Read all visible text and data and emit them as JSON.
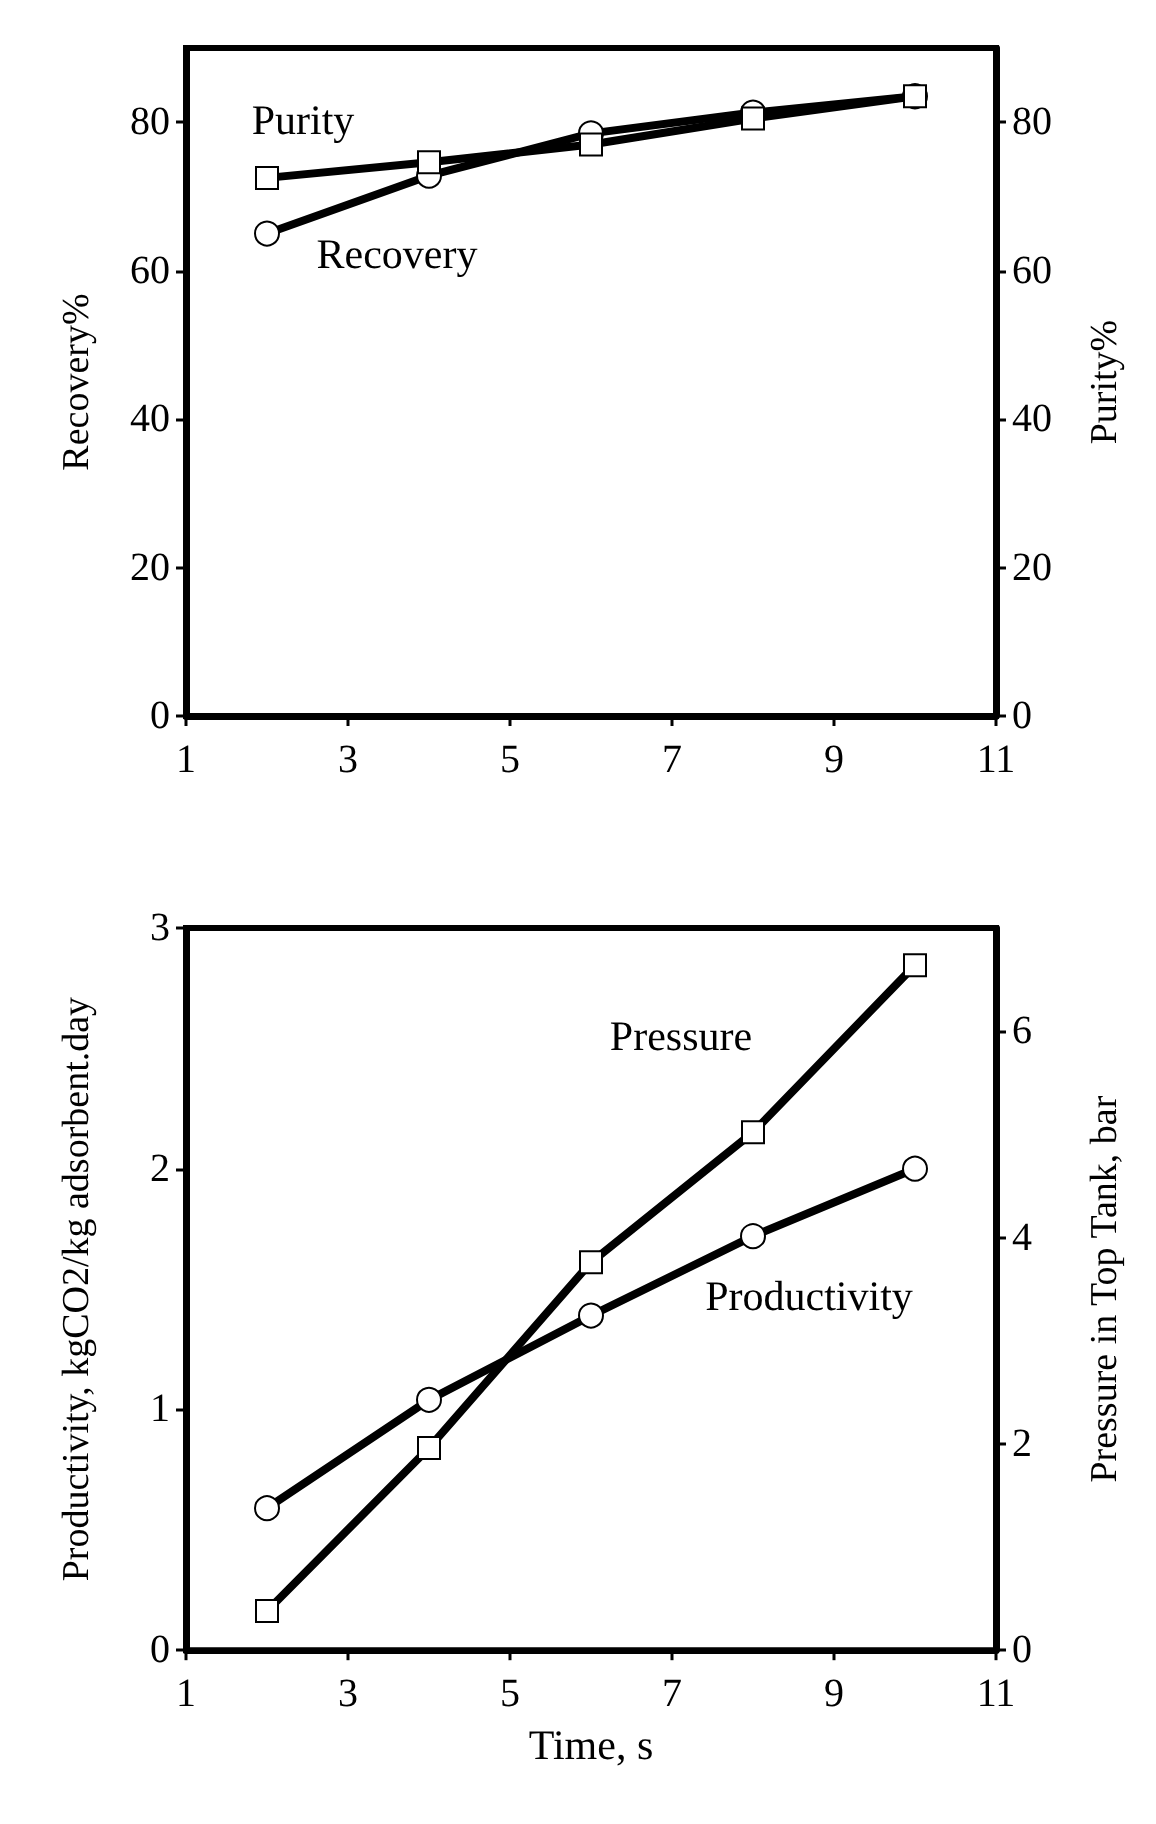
{
  "chart_data": [
    {
      "type": "line",
      "ylabel": "Recovery%",
      "y2label": "Purity%",
      "x": [
        2,
        4,
        6,
        8,
        10
      ],
      "xlim": [
        1,
        11
      ],
      "xticks": [
        1,
        3,
        5,
        7,
        9,
        11
      ],
      "ylim": [
        0,
        90
      ],
      "yticks": [
        0,
        20,
        40,
        60,
        80
      ],
      "y2lim": [
        0,
        90
      ],
      "y2ticks": [
        0,
        20,
        40,
        60,
        80
      ],
      "grid": false,
      "legend": false,
      "series": [
        {
          "name": "Recovery",
          "color": "#000000",
          "marker": "circle",
          "values": [
            65,
            72.8,
            78.5,
            81.3,
            83.5
          ]
        },
        {
          "name": "Purity",
          "color": "#000000",
          "marker": "square",
          "axis": "y2",
          "values": [
            72.5,
            74.6,
            77,
            80.5,
            83.5
          ]
        }
      ]
    },
    {
      "type": "line",
      "xlabel": "Time, s",
      "ylabel": "Productivity, kgCO2/kg adsorbent.day",
      "y2label": "Pressure in Top Tank, bar",
      "x": [
        2,
        4,
        6,
        8,
        10
      ],
      "xlim": [
        1,
        11
      ],
      "xticks": [
        1,
        3,
        5,
        7,
        9,
        11
      ],
      "ylim": [
        0,
        3
      ],
      "yticks": [
        0,
        1,
        2,
        3
      ],
      "y2lim": [
        0,
        7
      ],
      "y2ticks": [
        0,
        2,
        4,
        6
      ],
      "grid": false,
      "legend": false,
      "series": [
        {
          "name": "Pressure",
          "color": "#000000",
          "marker": "square",
          "axis": "y2",
          "values": [
            0.38,
            1.96,
            3.76,
            5.02,
            6.64
          ]
        },
        {
          "name": "Productivity",
          "color": "#000000",
          "marker": "circle",
          "values": [
            0.59,
            1.04,
            1.39,
            1.72,
            2.0
          ]
        }
      ]
    }
  ]
}
